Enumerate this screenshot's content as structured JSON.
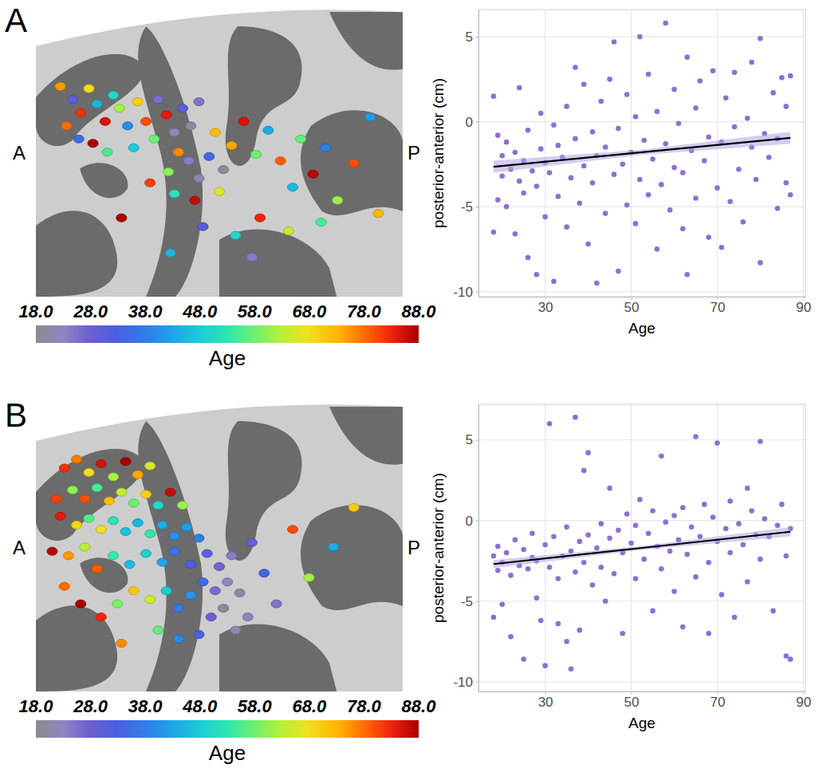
{
  "chart_data": [
    {
      "type": "brain_map",
      "panel_label": "A",
      "anterior_label": "A",
      "posterior_label": "P",
      "xlim": [
        6,
        -12
      ],
      "ylim": [
        -6,
        7
      ],
      "tick_labels": false,
      "dots": {
        "x": [
          4.8,
          4.2,
          3.8,
          3.4,
          3.0,
          2.6,
          2.2,
          4.5,
          3.9,
          3.2,
          2.5,
          1.9,
          1.5,
          1.0,
          0.6,
          0.2,
          1.2,
          0.0,
          -0.4,
          -0.8,
          -1.2,
          -1.6,
          -2.0,
          -1.0,
          -0.5,
          -1.5,
          -2.0,
          -2.5,
          -2.8,
          -3.2,
          -3.0,
          -1.8,
          -0.8,
          0.4,
          -3.6,
          -4.2,
          -4.8,
          -5.4,
          -6.0,
          -6.6,
          -7.0,
          -7.6,
          -8.2,
          -8.8,
          -9.6,
          -10.4,
          -5.0,
          -3.8,
          -2.2,
          -6.4,
          -8.0,
          1.8,
          -10.8,
          -4.6,
          -0.6
        ],
        "y": [
          3.6,
          3.0,
          2.4,
          3.5,
          2.8,
          2.0,
          3.2,
          1.8,
          1.2,
          1.0,
          0.6,
          2.6,
          1.8,
          2.9,
          2.0,
          1.2,
          0.8,
          3.0,
          2.3,
          1.5,
          2.6,
          1.8,
          2.9,
          0.6,
          -0.3,
          0.2,
          -0.6,
          0.4,
          1.5,
          -0.2,
          -1.2,
          -1.6,
          -1.3,
          -0.8,
          0.9,
          2.0,
          0.5,
          1.6,
          0.2,
          -1.0,
          1.2,
          -0.4,
          0.8,
          -1.6,
          0.1,
          2.2,
          -2.4,
          -3.2,
          -2.8,
          -3.0,
          -2.6,
          -2.4,
          -2.2,
          -4.2,
          -4.0
        ],
        "age": [
          75,
          30,
          82,
          68,
          45,
          85,
          50,
          78,
          35,
          88,
          55,
          62,
          40,
          70,
          80,
          58,
          48,
          26,
          84,
          22,
          30,
          20,
          25,
          76,
          60,
          24,
          21,
          34,
          72,
          19,
          66,
          86,
          52,
          81,
          74,
          85,
          58,
          44,
          79,
          46,
          57,
          87,
          38,
          61,
          80,
          42,
          83,
          50,
          31,
          64,
          55,
          88,
          73,
          24,
          45
        ]
      },
      "colorbar": {
        "lim": [
          18,
          88
        ],
        "title": "Age",
        "ticks": [
          {
            "value": 18,
            "label": "18.0"
          },
          {
            "value": 28,
            "label": "28.0"
          },
          {
            "value": 38,
            "label": "38.0"
          },
          {
            "value": 48,
            "label": "48.0"
          },
          {
            "value": 58,
            "label": "58.0"
          },
          {
            "value": 68,
            "label": "68.0"
          },
          {
            "value": 78,
            "label": "78.0"
          },
          {
            "value": 88,
            "label": "88.0"
          }
        ]
      }
    },
    {
      "type": "scatter",
      "xlabel": "Age",
      "ylabel": "posterior-anterior (cm)",
      "color": "#8e6fd3",
      "marker": "circle",
      "grid": true,
      "xlim": [
        14.5,
        90.5
      ],
      "ylim": [
        -10.3,
        6.6
      ],
      "xticks": [
        30,
        50,
        70,
        90
      ],
      "yticks": [
        -10,
        -5,
        0,
        5
      ],
      "x": [
        18,
        18,
        19,
        19,
        20,
        20,
        21,
        21,
        22,
        23,
        23,
        24,
        24,
        25,
        25,
        26,
        26,
        27,
        28,
        28,
        29,
        29,
        30,
        30,
        31,
        32,
        32,
        33,
        33,
        34,
        35,
        35,
        36,
        37,
        37,
        38,
        39,
        39,
        40,
        41,
        41,
        42,
        42,
        43,
        44,
        44,
        45,
        46,
        46,
        47,
        47,
        48,
        49,
        49,
        50,
        51,
        51,
        52,
        52,
        53,
        54,
        54,
        55,
        56,
        56,
        57,
        58,
        58,
        59,
        60,
        60,
        61,
        62,
        62,
        63,
        63,
        64,
        65,
        65,
        66,
        67,
        68,
        68,
        69,
        70,
        71,
        71,
        72,
        73,
        74,
        74,
        75,
        76,
        77,
        78,
        78,
        79,
        80,
        80,
        81,
        82,
        83,
        84,
        84,
        85,
        86,
        86,
        87,
        87
      ],
      "y": [
        1.5,
        -6.5,
        -4.6,
        -0.8,
        -3.2,
        -2.0,
        -5.0,
        -1.2,
        -2.8,
        -6.6,
        -1.8,
        -3.5,
        2.0,
        -4.2,
        -2.3,
        -8.0,
        -0.5,
        -2.9,
        -3.8,
        -9.0,
        -1.6,
        0.5,
        -5.6,
        -2.4,
        -3.0,
        -9.4,
        -0.2,
        -4.4,
        -1.4,
        -2.1,
        -6.2,
        0.9,
        -3.3,
        -1.0,
        3.2,
        -4.8,
        -2.6,
        2.2,
        -7.2,
        -3.6,
        -0.6,
        -9.5,
        -2.0,
        1.2,
        -5.4,
        -1.5,
        2.5,
        -3.1,
        4.7,
        -8.8,
        -0.4,
        -2.5,
        -4.9,
        1.6,
        -1.8,
        -6.0,
        0.3,
        -3.4,
        5.0,
        -1.1,
        -4.3,
        2.8,
        -2.2,
        -7.5,
        0.6,
        -3.7,
        5.8,
        -1.3,
        -5.2,
        -2.7,
        1.9,
        -0.1,
        -6.3,
        -3.0,
        -9.0,
        3.8,
        -1.7,
        -4.5,
        0.8,
        2.4,
        -2.3,
        -6.8,
        -0.9,
        3.0,
        -3.9,
        -1.2,
        -7.4,
        1.4,
        -4.7,
        -0.3,
        2.9,
        -2.8,
        -5.9,
        0.2,
        -1.5,
        3.5,
        -3.4,
        4.9,
        -8.3,
        -0.7,
        -2.1,
        1.7,
        -5.1,
        -1.0,
        2.6,
        -3.6,
        0.9,
        -4.3,
        2.7
      ],
      "fit": {
        "x": [
          18,
          52.5,
          87
        ],
        "y": [
          -2.65,
          -1.8,
          -0.95
        ],
        "lower": [
          -3.0,
          -1.95,
          -1.3
        ],
        "upper": [
          -2.3,
          -1.65,
          -0.6
        ]
      }
    },
    {
      "type": "brain_map",
      "panel_label": "B",
      "anterior_label": "A",
      "posterior_label": "P",
      "xlim": [
        6,
        -12
      ],
      "ylim": [
        -6,
        7
      ],
      "tick_labels": false,
      "dots": {
        "x": [
          4.6,
          4.0,
          3.4,
          2.8,
          2.2,
          1.6,
          1.0,
          0.4,
          4.2,
          3.6,
          3.0,
          2.4,
          1.8,
          1.2,
          0.6,
          0.0,
          -0.6,
          -1.2,
          4.8,
          4.0,
          3.4,
          2.8,
          2.2,
          1.6,
          1.0,
          0.4,
          -0.2,
          -0.8,
          -1.4,
          -2.0,
          5.2,
          4.4,
          3.6,
          3.0,
          2.2,
          1.4,
          0.6,
          -0.2,
          -0.8,
          -1.6,
          -2.4,
          -3.0,
          -3.6,
          -2.2,
          -2.8,
          -3.4,
          -4.0,
          -3.2,
          -2.6,
          -1.6,
          -1.0,
          -0.4,
          0.4,
          1.2,
          2.0,
          2.8,
          -4.4,
          -3.8,
          -2.0,
          -1.0,
          0.0,
          -4.6,
          -5.2,
          -5.8,
          -6.6,
          -7.4,
          -8.6,
          1.8,
          3.8,
          4.6,
          -9.6,
          5.0
        ],
        "y": [
          4.2,
          4.6,
          4.0,
          4.4,
          3.8,
          4.5,
          3.9,
          4.3,
          3.2,
          2.8,
          3.3,
          2.7,
          3.1,
          2.6,
          3.0,
          2.5,
          3.1,
          2.5,
          2.0,
          1.6,
          1.9,
          1.4,
          1.8,
          1.3,
          1.7,
          1.2,
          1.6,
          1.1,
          1.5,
          1.0,
          0.4,
          0.2,
          0.6,
          -0.4,
          0.2,
          -0.2,
          0.3,
          -0.1,
          0.4,
          -0.2,
          0.3,
          -0.3,
          0.2,
          -1.0,
          -1.4,
          -1.0,
          -1.5,
          -2.2,
          -2.6,
          -1.6,
          -2.2,
          -1.4,
          -1.8,
          -1.4,
          -2.0,
          -2.6,
          -2.6,
          -3.2,
          -3.4,
          -3.6,
          -3.2,
          0.8,
          -0.6,
          -2.0,
          1.4,
          -0.8,
          0.6,
          -3.8,
          -2.0,
          -1.2,
          2.4,
          2.8
        ],
        "age": [
          82,
          77,
          68,
          85,
          62,
          88,
          74,
          66,
          60,
          80,
          55,
          72,
          64,
          58,
          70,
          50,
          86,
          61,
          84,
          69,
          56,
          67,
          52,
          47,
          45,
          53,
          44,
          40,
          42,
          38,
          87,
          75,
          63,
          79,
          54,
          46,
          49,
          43,
          36,
          32,
          30,
          27,
          24,
          35,
          26,
          22,
          20,
          19,
          28,
          41,
          37,
          48,
          65,
          71,
          59,
          83,
          23,
          21,
          33,
          39,
          57,
          29,
          34,
          25,
          80,
          62,
          44,
          76,
          88,
          78,
          70,
          81
        ]
      },
      "colorbar": {
        "lim": [
          18,
          88
        ],
        "title": "Age",
        "ticks": [
          {
            "value": 18,
            "label": "18.0"
          },
          {
            "value": 28,
            "label": "28.0"
          },
          {
            "value": 38,
            "label": "38.0"
          },
          {
            "value": 48,
            "label": "48.0"
          },
          {
            "value": 58,
            "label": "58.0"
          },
          {
            "value": 68,
            "label": "68.0"
          },
          {
            "value": 78,
            "label": "78.0"
          },
          {
            "value": 88,
            "label": "88.0"
          }
        ]
      }
    },
    {
      "type": "scatter",
      "xlabel": "Age",
      "ylabel": "posterior-anterior (cm)",
      "color": "#8e6fd3",
      "marker": "circle",
      "grid": true,
      "xlim": [
        14.5,
        90.5
      ],
      "ylim": [
        -10.6,
        7.2
      ],
      "xticks": [
        30,
        50,
        70,
        90
      ],
      "yticks": [
        -10,
        -5,
        0,
        5
      ],
      "x": [
        18,
        18,
        19,
        19,
        20,
        20,
        21,
        22,
        22,
        23,
        24,
        25,
        25,
        26,
        27,
        27,
        28,
        28,
        29,
        30,
        30,
        31,
        31,
        32,
        33,
        33,
        34,
        35,
        35,
        36,
        36,
        37,
        37,
        38,
        38,
        39,
        39,
        40,
        40,
        41,
        42,
        43,
        43,
        44,
        45,
        45,
        46,
        47,
        48,
        48,
        49,
        50,
        51,
        51,
        52,
        53,
        54,
        55,
        55,
        56,
        57,
        57,
        58,
        59,
        60,
        60,
        61,
        62,
        62,
        63,
        64,
        65,
        65,
        66,
        67,
        68,
        68,
        69,
        70,
        70,
        71,
        72,
        73,
        73,
        74,
        75,
        76,
        77,
        77,
        78,
        79,
        80,
        80,
        81,
        82,
        83,
        84,
        85,
        86,
        86,
        87,
        87
      ],
      "y": [
        -2.2,
        -6.0,
        -3.1,
        -1.6,
        -2.6,
        -5.2,
        -2.0,
        -7.2,
        -3.4,
        -1.2,
        -2.8,
        -8.6,
        -1.8,
        -3.0,
        -2.3,
        -0.8,
        -4.8,
        -2.5,
        -6.2,
        -1.5,
        -9.0,
        6.0,
        -2.9,
        -1.0,
        -3.6,
        -6.4,
        -2.2,
        -0.4,
        -7.5,
        -1.9,
        -9.2,
        6.4,
        -3.2,
        -1.3,
        -6.8,
        3.1,
        -2.6,
        -0.9,
        4.2,
        -4.0,
        -1.7,
        -0.2,
        -2.9,
        -5.0,
        -1.1,
        2.0,
        -3.3,
        -0.6,
        -2.0,
        -7.0,
        0.4,
        -1.4,
        -3.6,
        -0.3,
        1.3,
        -2.4,
        -0.8,
        -5.6,
        0.6,
        -1.6,
        4.0,
        -3.0,
        -0.1,
        -1.9,
        0.3,
        -4.4,
        -1.2,
        -6.6,
        0.8,
        -2.1,
        -0.4,
        5.2,
        -3.5,
        -1.0,
        1.0,
        -2.6,
        -7.0,
        0.2,
        -1.3,
        4.8,
        -4.6,
        -0.5,
        1.2,
        -2.0,
        -6.0,
        -0.2,
        -1.5,
        2.0,
        -3.8,
        0.6,
        -0.9,
        4.9,
        -2.4,
        0.1,
        -1.0,
        -5.6,
        -0.3,
        1.0,
        -8.4,
        -2.2,
        -8.6,
        -0.5
      ],
      "fit": {
        "x": [
          18,
          52.5,
          87
        ],
        "y": [
          -2.7,
          -1.7,
          -0.7
        ],
        "lower": [
          -2.95,
          -1.82,
          -0.98
        ],
        "upper": [
          -2.45,
          -1.58,
          -0.42
        ]
      }
    }
  ]
}
